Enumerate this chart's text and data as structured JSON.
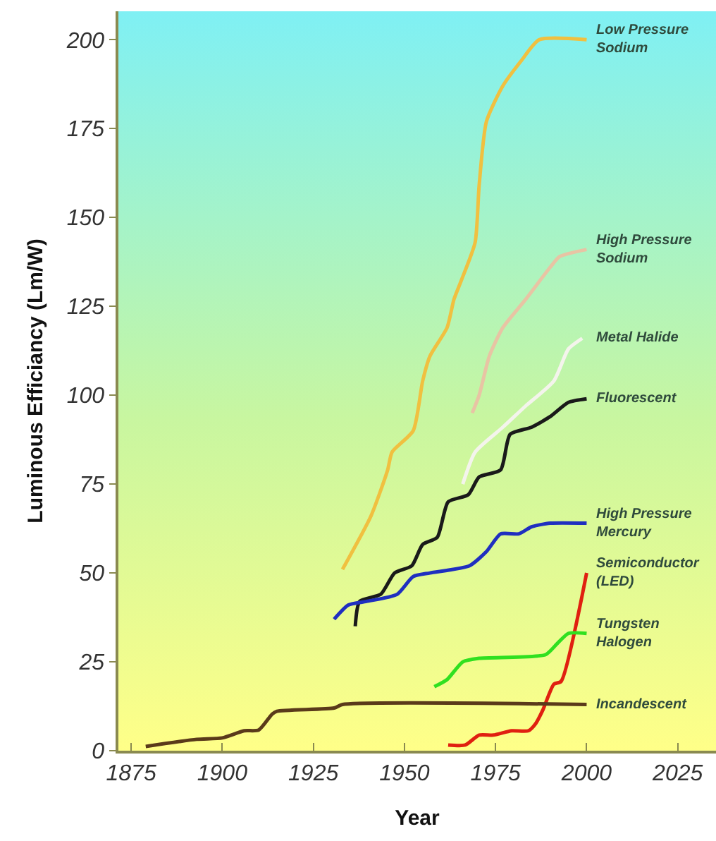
{
  "chart_data": {
    "type": "line",
    "xlabel": "Year",
    "ylabel": "Luminous Efficiancy (Lm/W)",
    "xlim": [
      1871.5,
      2035.5
    ],
    "xticks": [
      1875,
      1900,
      1925,
      1950,
      1975,
      2000,
      2025
    ],
    "ylim": [
      0,
      208
    ],
    "yticks": [
      0,
      25,
      50,
      75,
      100,
      125,
      150,
      175,
      200
    ],
    "grid": false,
    "legend": false,
    "marker": "none",
    "line_style": "solid",
    "series": [
      {
        "name": "Low Pressure Sodium",
        "color": "#f0c040",
        "x": [
          1933,
          1940.8,
          1945.4,
          1946.6,
          1952.4,
          1955,
          1957,
          1961.7,
          1963.6,
          1965.5,
          1969.4,
          1970.5,
          1972.5,
          1977,
          1982,
          1987,
          2000
        ],
        "values": [
          51,
          66,
          79,
          84,
          90,
          104,
          111,
          119,
          127,
          132,
          143,
          159,
          177,
          187,
          194,
          200,
          200
        ]
      },
      {
        "name": "High Pressure Sodium",
        "color": "#e8c4a4",
        "x": [
          1968.6,
          1970.5,
          1973.3,
          1977,
          1983.3,
          1990,
          1992.6,
          2000
        ],
        "values": [
          95,
          100,
          111,
          119,
          127,
          136,
          139,
          141
        ]
      },
      {
        "name": "Metal Halide",
        "color": "#f4f4ec",
        "x": [
          1966,
          1969.4,
          1977,
          1983.3,
          1991,
          1995,
          1998.8
        ],
        "values": [
          75,
          84,
          91,
          97,
          104,
          113,
          116
        ]
      },
      {
        "name": "Fluorescent",
        "color": "#1a1a1a",
        "x": [
          1936.5,
          1937.7,
          1943.5,
          1947.3,
          1952,
          1955,
          1959,
          1962,
          1967.5,
          1970.5,
          1976.4,
          1979,
          1984.9,
          1990,
          1995,
          2000
        ],
        "values": [
          35,
          42,
          44,
          50,
          52,
          58,
          60,
          70,
          72,
          77,
          79,
          89,
          91,
          94,
          98,
          99
        ]
      },
      {
        "name": "High Pressure Mercury",
        "color": "#1f2fc0",
        "x": [
          1930.7,
          1934.6,
          1939.6,
          1948,
          1952.4,
          1957,
          1967.8,
          1972.5,
          1976.4,
          1981.4,
          1984.9,
          1990,
          2000
        ],
        "values": [
          37,
          41,
          42,
          44,
          49,
          50,
          52,
          56,
          61,
          61,
          63,
          64,
          64
        ]
      },
      {
        "name": "Semiconductor (LED)",
        "color": "#e02010",
        "x": [
          1962,
          1966.7,
          1970.5,
          1974.4,
          1979.4,
          1984,
          1986,
          1988,
          1991,
          1993,
          2000
        ],
        "values": [
          1.6,
          1.6,
          4.4,
          4.4,
          5.6,
          5.6,
          7.6,
          11.5,
          18.7,
          19.5,
          50
        ]
      },
      {
        "name": "Tungsten Halogen",
        "color": "#30e020",
        "x": [
          1958.2,
          1961.7,
          1966,
          1970.5,
          1988.7,
          1991.8,
          1995,
          2000
        ],
        "values": [
          18,
          20,
          25,
          26,
          27,
          30,
          33,
          33
        ]
      },
      {
        "name": "Incandescent",
        "color": "#5a3a1a",
        "x": [
          1879,
          1893,
          1900,
          1906,
          1910,
          1913.7,
          1915,
          1930.7,
          1933,
          2000
        ],
        "values": [
          1.2,
          3.2,
          3.6,
          5.6,
          5.8,
          10.3,
          11.1,
          12,
          13,
          13
        ]
      }
    ]
  }
}
